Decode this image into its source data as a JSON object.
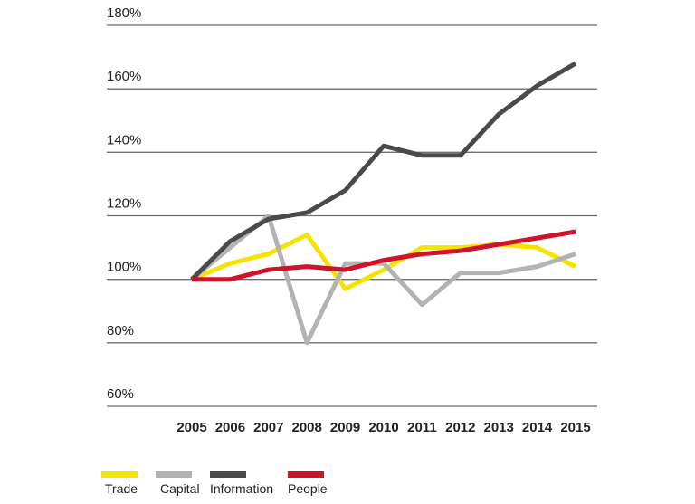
{
  "chart_data": {
    "type": "line",
    "x": [
      "2005",
      "2006",
      "2007",
      "2008",
      "2009",
      "2010",
      "2011",
      "2012",
      "2013",
      "2014",
      "2015"
    ],
    "ylim": [
      60,
      180
    ],
    "y_ticks": [
      {
        "value": 180,
        "label": "180%"
      },
      {
        "value": 160,
        "label": "160%"
      },
      {
        "value": 140,
        "label": "140%"
      },
      {
        "value": 120,
        "label": "120%"
      },
      {
        "value": 100,
        "label": "100%"
      },
      {
        "value": 80,
        "label": "80%"
      },
      {
        "value": 60,
        "label": "60%"
      }
    ],
    "grid": true,
    "legend_position": "bottom",
    "series": [
      {
        "name": "Trade",
        "color": "#f5e400",
        "values": [
          100,
          105,
          108,
          114,
          97,
          103,
          110,
          110,
          111,
          110,
          104
        ]
      },
      {
        "name": "Capital",
        "color": "#b3b3b3",
        "values": [
          100,
          110,
          120,
          80,
          105,
          105,
          92,
          102,
          102,
          104,
          108
        ]
      },
      {
        "name": "Information",
        "color": "#4a4a4a",
        "values": [
          100,
          112,
          119,
          121,
          128,
          142,
          139,
          139,
          152,
          161,
          168
        ]
      },
      {
        "name": "People",
        "color": "#d0132a",
        "values": [
          100,
          100,
          103,
          104,
          103,
          106,
          108,
          109,
          111,
          113,
          115
        ]
      }
    ]
  }
}
